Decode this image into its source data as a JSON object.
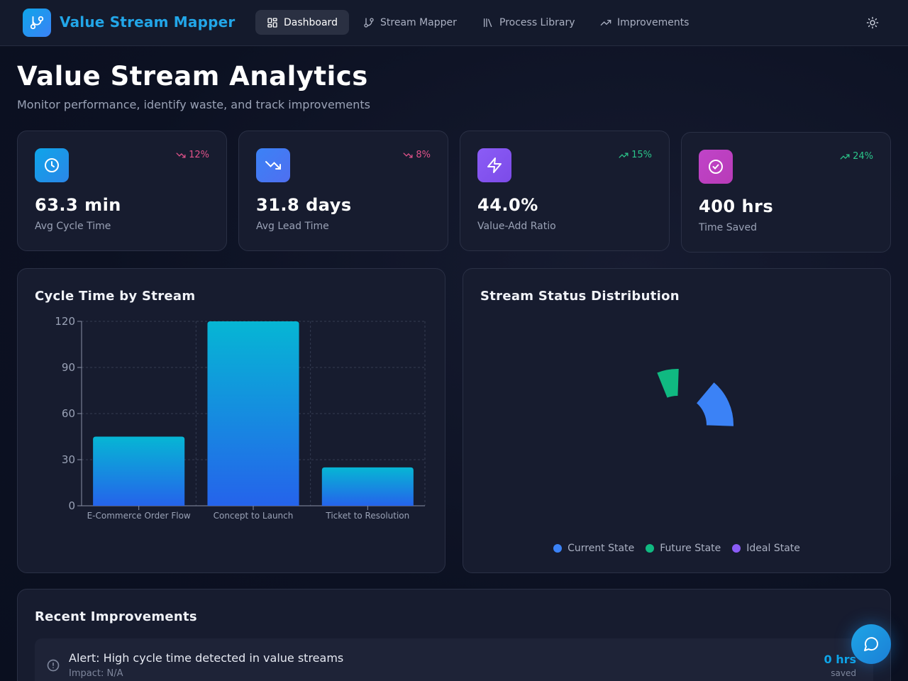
{
  "app": {
    "title": "Value Stream Mapper"
  },
  "nav": {
    "items": [
      {
        "label": "Dashboard",
        "icon": "dashboard-icon",
        "active": true
      },
      {
        "label": "Stream Mapper",
        "icon": "git-branch-icon",
        "active": false
      },
      {
        "label": "Process Library",
        "icon": "library-icon",
        "active": false
      },
      {
        "label": "Improvements",
        "icon": "trending-up-icon",
        "active": false
      }
    ],
    "theme_icon": "sun-icon"
  },
  "header": {
    "title": "Value Stream Analytics",
    "subtitle": "Monitor performance, identify waste, and track improvements"
  },
  "stats": [
    {
      "value": "63.3 min",
      "label": "Avg Cycle Time",
      "trend": "12%",
      "trend_dir": "down",
      "icon": "clock-icon",
      "color": "#0ea5e9"
    },
    {
      "value": "31.8 days",
      "label": "Avg Lead Time",
      "trend": "8%",
      "trend_dir": "down",
      "icon": "trending-down-icon",
      "color": "#3b82f6"
    },
    {
      "value": "44.0%",
      "label": "Value-Add Ratio",
      "trend": "15%",
      "trend_dir": "up",
      "icon": "zap-icon",
      "color": "#8b5cf6"
    },
    {
      "value": "400 hrs",
      "label": "Time Saved",
      "trend": "24%",
      "trend_dir": "up",
      "icon": "check-circle-icon",
      "color": "#c044c8"
    }
  ],
  "cycle_chart": {
    "title": "Cycle Time by Stream"
  },
  "status_chart": {
    "title": "Stream Status Distribution",
    "legend": [
      {
        "label": "Current State",
        "color": "#3b82f6"
      },
      {
        "label": "Future State",
        "color": "#10b981"
      },
      {
        "label": "Ideal State",
        "color": "#8b5cf6"
      }
    ]
  },
  "improvements": {
    "title": "Recent Improvements",
    "items": [
      {
        "title": "Alert: High cycle time detected in value streams",
        "impact": "Impact: N/A",
        "hours": "0 hrs",
        "saved": "saved"
      }
    ]
  },
  "chart_data": [
    {
      "type": "bar",
      "title": "Cycle Time by Stream",
      "categories": [
        "E-Commerce Order Flow",
        "Concept to Launch",
        "Ticket to Resolution"
      ],
      "values": [
        45,
        120,
        25
      ],
      "ylim": [
        0,
        120
      ],
      "yticks": [
        0,
        30,
        60,
        90,
        120
      ],
      "grid": true,
      "colors": [
        "#06b6d4",
        "#2563eb"
      ]
    },
    {
      "type": "pie",
      "title": "Stream Status Distribution",
      "note": "partially rendered (animating) donut",
      "categories": [
        "Current State",
        "Future State",
        "Ideal State"
      ],
      "colors": [
        "#3b82f6",
        "#10b981",
        "#8b5cf6"
      ],
      "legend": "bottom"
    }
  ]
}
